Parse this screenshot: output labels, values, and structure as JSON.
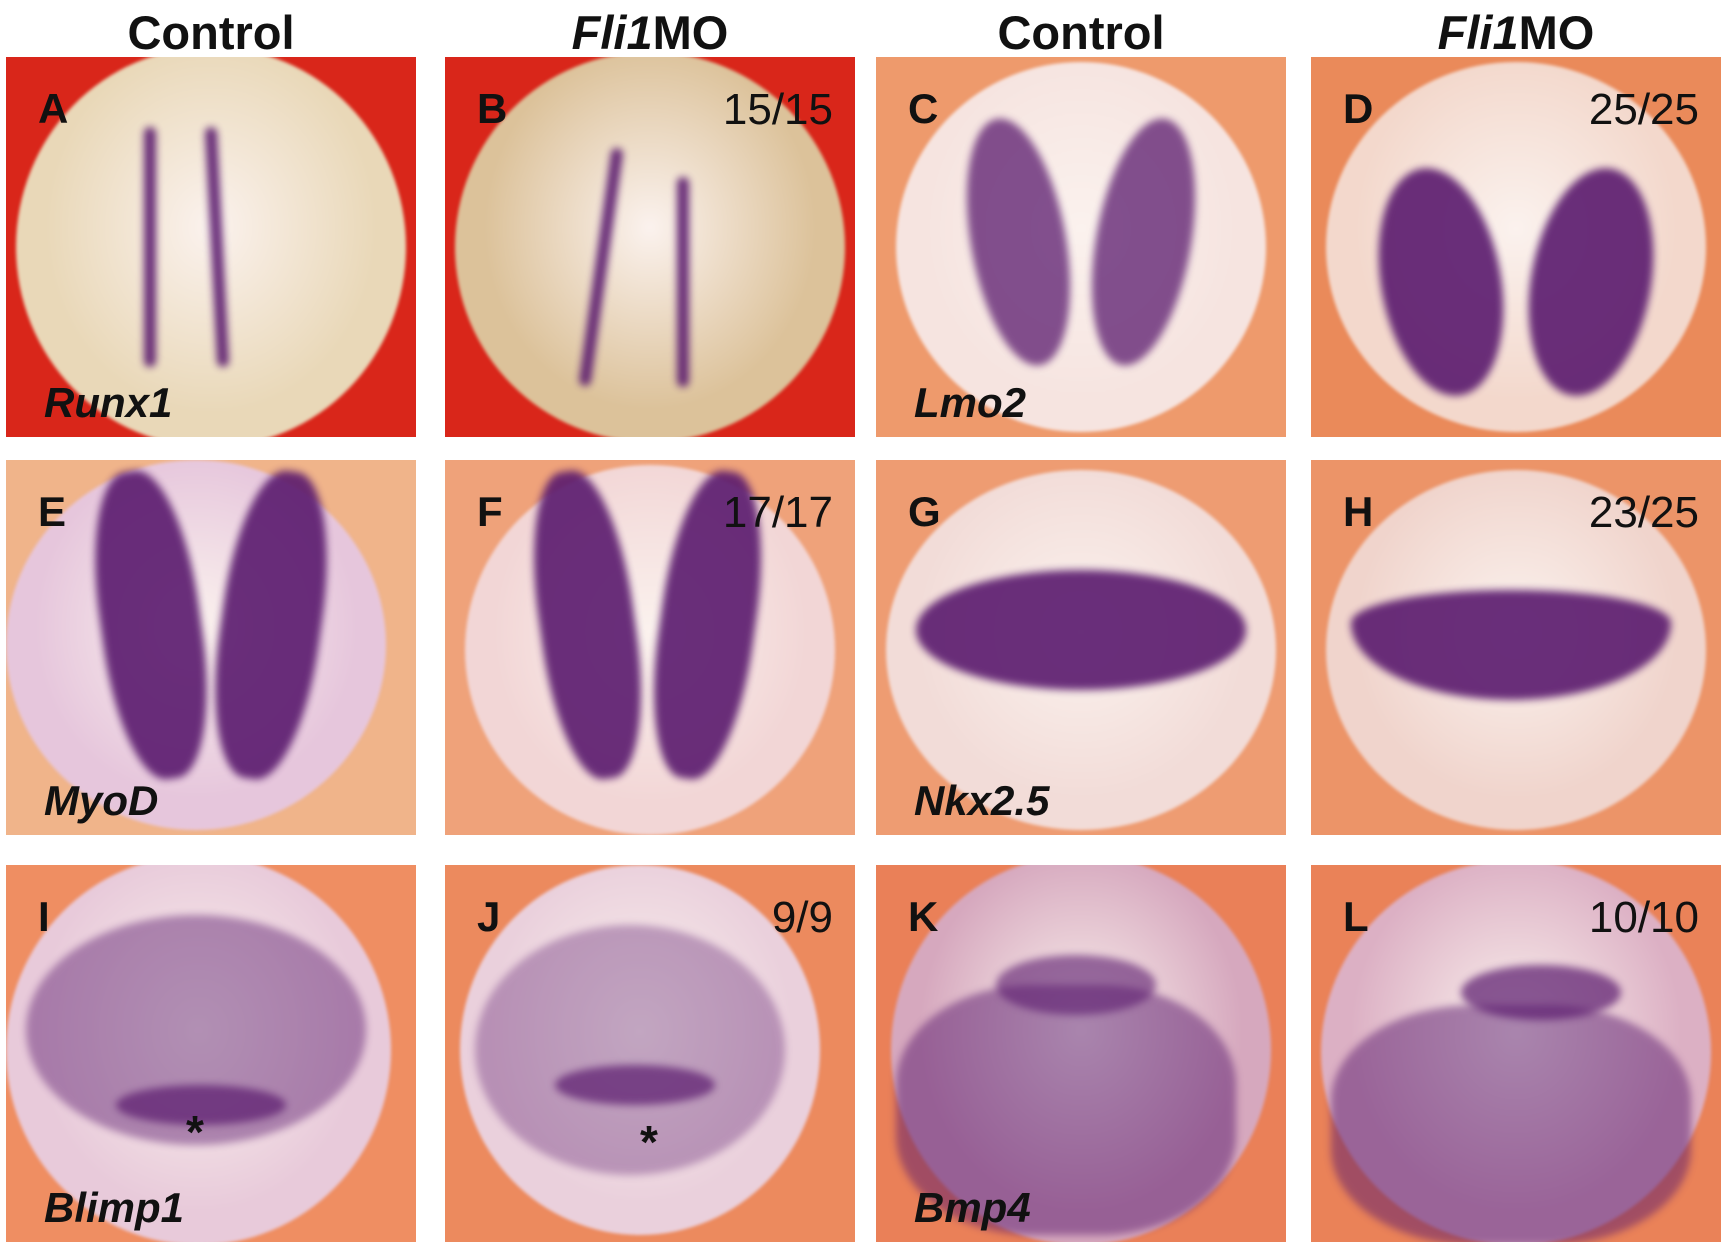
{
  "column_headers": [
    {
      "text": "Control",
      "italic_part": ""
    },
    {
      "text": "MO",
      "italic_part": "Fli1"
    },
    {
      "text": "Control",
      "italic_part": ""
    },
    {
      "text": "MO",
      "italic_part": "Fli1"
    }
  ],
  "panels": [
    {
      "letter": "A",
      "gene": "Runx1",
      "count": "",
      "bg": "#d9261a",
      "embryo": "#e9d8b8"
    },
    {
      "letter": "B",
      "gene": "",
      "count": "15/15",
      "bg": "#d9261a",
      "embryo": "#dcc29a"
    },
    {
      "letter": "C",
      "gene": "Lmo2",
      "count": "",
      "bg": "#ee9a6c",
      "embryo": "#f6e4e0"
    },
    {
      "letter": "D",
      "gene": "",
      "count": "25/25",
      "bg": "#ea8a5a",
      "embryo": "#f3d8cc"
    },
    {
      "letter": "E",
      "gene": "MyoD",
      "count": "",
      "bg": "#f0b48a",
      "embryo": "#e6c6dc"
    },
    {
      "letter": "F",
      "gene": "",
      "count": "17/17",
      "bg": "#efa27a",
      "embryo": "#f2d6d6"
    },
    {
      "letter": "G",
      "gene": "Nkx2.5",
      "count": "",
      "bg": "#ee9c72",
      "embryo": "#f2dcd8"
    },
    {
      "letter": "H",
      "gene": "",
      "count": "23/25",
      "bg": "#ec9468",
      "embryo": "#f0d4cc"
    },
    {
      "letter": "I",
      "gene": "Blimp1",
      "count": "",
      "asterisk": "*",
      "bg": "#ef8e62",
      "embryo": "#e8cada"
    },
    {
      "letter": "J",
      "gene": "",
      "count": "9/9",
      "asterisk": "*",
      "bg": "#ec8a5e",
      "embryo": "#ead0dc"
    },
    {
      "letter": "K",
      "gene": "Bmp4",
      "count": "",
      "bg": "#ea8058",
      "embryo": "#d6a8be"
    },
    {
      "letter": "L",
      "gene": "",
      "count": "10/10",
      "bg": "#ea8258",
      "embryo": "#dcb0c4"
    }
  ],
  "stain_color": "#5a1a6e"
}
